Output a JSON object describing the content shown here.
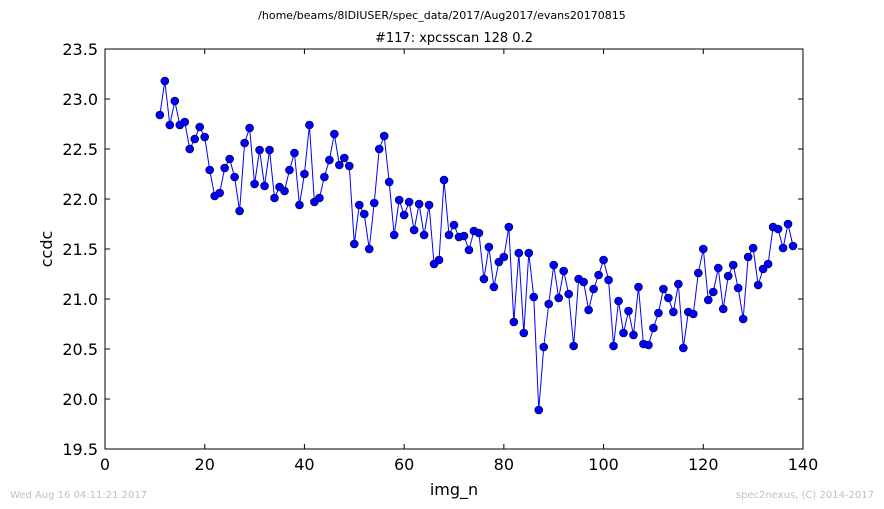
{
  "footer": {
    "timestamp": "Wed Aug 16 04:11:21 2017",
    "credit": "spec2nexus, (C) 2014-2017"
  },
  "chart_data": {
    "type": "line",
    "suptitle": "/home/beams/8IDIUSER/spec_data/2017/Aug2017/evans20170815",
    "title": "#117: xpcsscan 128 0.2",
    "xlabel": "img_n",
    "ylabel": "ccdc",
    "xlim": [
      0,
      140
    ],
    "ylim": [
      19.5,
      23.5
    ],
    "xticks": [
      0,
      20,
      40,
      60,
      80,
      100,
      120,
      140
    ],
    "yticks": [
      19.5,
      20.0,
      20.5,
      21.0,
      21.5,
      22.0,
      22.5,
      23.0,
      23.5
    ],
    "grid": false,
    "legend": "none",
    "line_color": "#0000ff",
    "marker": "circle",
    "x": [
      11,
      12,
      13,
      14,
      15,
      16,
      17,
      18,
      19,
      20,
      21,
      22,
      23,
      24,
      25,
      26,
      27,
      28,
      29,
      30,
      31,
      32,
      33,
      34,
      35,
      36,
      37,
      38,
      39,
      40,
      41,
      42,
      43,
      44,
      45,
      46,
      47,
      48,
      49,
      50,
      51,
      52,
      53,
      54,
      55,
      56,
      57,
      58,
      59,
      60,
      61,
      62,
      63,
      64,
      65,
      66,
      67,
      68,
      69,
      70,
      71,
      72,
      73,
      74,
      75,
      76,
      77,
      78,
      79,
      80,
      81,
      82,
      83,
      84,
      85,
      86,
      87,
      88,
      89,
      90,
      91,
      92,
      93,
      94,
      95,
      96,
      97,
      98,
      99,
      100,
      101,
      102,
      103,
      104,
      105,
      106,
      107,
      108,
      109,
      110,
      111,
      112,
      113,
      114,
      115,
      116,
      117,
      118,
      119,
      120,
      121,
      122,
      123,
      124,
      125,
      126,
      127,
      128,
      129,
      130,
      131,
      132,
      133,
      134,
      135,
      136,
      137,
      138
    ],
    "y": [
      22.84,
      23.18,
      22.74,
      22.98,
      22.74,
      22.77,
      22.5,
      22.6,
      22.72,
      22.62,
      22.29,
      22.03,
      22.06,
      22.31,
      22.4,
      22.22,
      21.88,
      22.56,
      22.71,
      22.15,
      22.49,
      22.13,
      22.49,
      22.01,
      22.12,
      22.08,
      22.29,
      22.46,
      21.94,
      22.25,
      22.74,
      21.97,
      22.01,
      22.22,
      22.39,
      22.65,
      22.34,
      22.41,
      22.33,
      21.55,
      21.94,
      21.85,
      21.5,
      21.96,
      22.5,
      22.63,
      22.17,
      21.64,
      21.99,
      21.84,
      21.97,
      21.69,
      21.95,
      21.64,
      21.94,
      21.35,
      21.39,
      22.19,
      21.64,
      21.74,
      21.62,
      21.63,
      21.49,
      21.68,
      21.66,
      21.2,
      21.52,
      21.12,
      21.37,
      21.42,
      21.72,
      20.77,
      21.46,
      20.66,
      21.46,
      21.02,
      19.89,
      20.52,
      20.95,
      21.34,
      21.01,
      21.28,
      21.05,
      20.53,
      21.2,
      21.17,
      20.89,
      21.1,
      21.24,
      21.39,
      21.19,
      20.53,
      20.98,
      20.66,
      20.88,
      20.64,
      21.12,
      20.55,
      20.54,
      20.71,
      20.86,
      21.1,
      21.01,
      20.87,
      21.15,
      20.51,
      20.87,
      20.85,
      21.26,
      21.5,
      20.99,
      21.07,
      21.31,
      20.9,
      21.23,
      21.34,
      21.11,
      20.8,
      21.42,
      21.51,
      21.14,
      21.3,
      21.35,
      21.72,
      21.7,
      21.51,
      21.75,
      21.53
    ]
  }
}
